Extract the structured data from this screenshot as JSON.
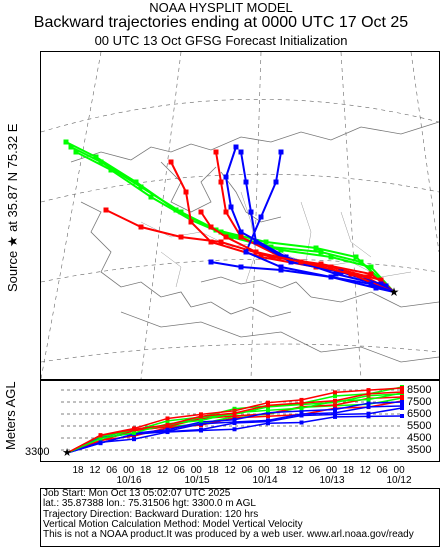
{
  "header": {
    "line1": "NOAA HYSPLIT MODEL",
    "line2": "Backward trajectories ending at 0000 UTC 17 Oct 25",
    "line3": "00 UTC 13 Oct    GFSG  Forecast Initialization"
  },
  "side": {
    "source_label": "Source ★ at   35.87 N   75.32 E",
    "alt_label": "Meters AGL"
  },
  "alt_levels": [
    "8500",
    "7500",
    "6500",
    "5500",
    "4500",
    "3500"
  ],
  "start_alt": "3300",
  "time_ticks": [
    "18",
    "12",
    "06",
    "00",
    "18",
    "12",
    "06",
    "00",
    "18",
    "12",
    "06",
    "00",
    "18",
    "12",
    "06",
    "00",
    "18",
    "12",
    "06",
    "00"
  ],
  "dates": [
    "10/16",
    "10/15",
    "10/14",
    "10/13",
    "10/12"
  ],
  "info": {
    "line1": "Job Start: Mon Oct 13 05:02:07 UTC 2025",
    "line2": "lat.: 35.87388   lon.: 75.31506    hgt: 3300.0 m AGL",
    "line3": "Trajectory Direction: Backward       Duration: 120 hrs",
    "line4": "Vertical Motion Calculation Method: Model Vertical Velocity",
    "line5": "This is not a NOAA product.It was produced by a web user.  www.arl.noaa.gov/ready"
  },
  "colors": {
    "red": "#ff0000",
    "blue": "#0000ff",
    "green": "#00ff00",
    "map": "#888888"
  }
}
